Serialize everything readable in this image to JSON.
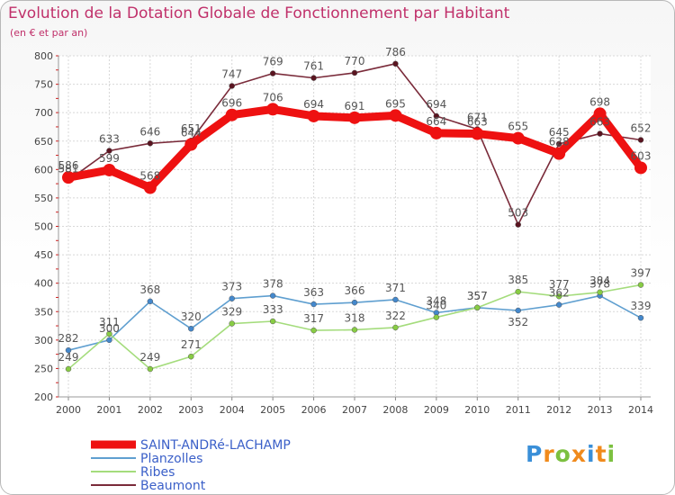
{
  "title": "Evolution de la Dotation Globale de Fonctionnement par Habitant",
  "subtitle": "(en € et par an)",
  "logo_text": "Proxiti",
  "chart_data": {
    "type": "line",
    "title": "Evolution de la Dotation Globale de Fonctionnement par Habitant",
    "ylabel": "(en € et par an)",
    "xlabel": "",
    "ylim": [
      200,
      800
    ],
    "yticks": [
      200,
      250,
      300,
      350,
      400,
      450,
      500,
      550,
      600,
      650,
      700,
      750,
      800
    ],
    "grid": true,
    "legend_position": "bottom-left",
    "x": [
      "2000",
      "2001",
      "2002",
      "2003",
      "2004",
      "2005",
      "2006",
      "2007",
      "2008",
      "2009",
      "2010",
      "2011",
      "2012",
      "2013",
      "2014"
    ],
    "series": [
      {
        "name": "SAINT-ANDRé-LACHAMP",
        "color": "#ee1111",
        "marker": "#ee1111",
        "values": [
          586,
          599,
          568,
          644,
          696,
          706,
          694,
          691,
          695,
          664,
          663,
          655,
          628,
          698,
          603
        ]
      },
      {
        "name": "Planzolles",
        "color": "#5f9fd0",
        "marker": "#4488cc",
        "values": [
          282,
          300,
          368,
          320,
          373,
          378,
          363,
          366,
          371,
          348,
          357,
          352,
          362,
          378,
          339
        ]
      },
      {
        "name": "Ribes",
        "color": "#a4dc7c",
        "marker": "#88cc44",
        "values": [
          249,
          311,
          249,
          271,
          329,
          333,
          317,
          318,
          322,
          340,
          357,
          385,
          377,
          384,
          397
        ]
      },
      {
        "name": "Beaumont",
        "color": "#7a2b3a",
        "marker": "#5a1420",
        "values": [
          581,
          633,
          646,
          651,
          747,
          769,
          761,
          770,
          786,
          694,
          671,
          503,
          645,
          663,
          652
        ]
      }
    ],
    "data_labels": [
      {
        "label": "586",
        "series": 0,
        "idx": 0,
        "above": true
      },
      {
        "label": "599",
        "series": 0,
        "idx": 1,
        "above": true
      },
      {
        "label": "568",
        "series": 0,
        "idx": 2,
        "above": true
      },
      {
        "label": "644",
        "series": 0,
        "idx": 3,
        "above": true
      },
      {
        "label": "696",
        "series": 0,
        "idx": 4,
        "above": true
      },
      {
        "label": "706",
        "series": 0,
        "idx": 5,
        "above": true
      },
      {
        "label": "694",
        "series": 0,
        "idx": 6,
        "above": true
      },
      {
        "label": "691",
        "series": 0,
        "idx": 7,
        "above": true
      },
      {
        "label": "695",
        "series": 0,
        "idx": 8,
        "above": true
      },
      {
        "label": "664",
        "series": 0,
        "idx": 9,
        "above": true
      },
      {
        "label": "663",
        "series": 0,
        "idx": 10,
        "above": true
      },
      {
        "label": "655",
        "series": 0,
        "idx": 11,
        "above": true
      },
      {
        "label": "628",
        "series": 0,
        "idx": 12,
        "above": true
      },
      {
        "label": "698",
        "series": 0,
        "idx": 13,
        "above": true
      },
      {
        "label": "603",
        "series": 0,
        "idx": 14,
        "above": true
      },
      {
        "label": "282",
        "series": 1,
        "idx": 0,
        "above": true
      },
      {
        "label": "300",
        "series": 1,
        "idx": 1,
        "above": true
      },
      {
        "label": "368",
        "series": 1,
        "idx": 2,
        "above": true
      },
      {
        "label": "320",
        "series": 1,
        "idx": 3,
        "above": true
      },
      {
        "label": "373",
        "series": 1,
        "idx": 4,
        "above": true
      },
      {
        "label": "378",
        "series": 1,
        "idx": 5,
        "above": true
      },
      {
        "label": "363",
        "series": 1,
        "idx": 6,
        "above": true
      },
      {
        "label": "366",
        "series": 1,
        "idx": 7,
        "above": true
      },
      {
        "label": "371",
        "series": 1,
        "idx": 8,
        "above": true
      },
      {
        "label": "348",
        "series": 1,
        "idx": 9,
        "above": true
      },
      {
        "label": "357",
        "series": 1,
        "idx": 10,
        "above": true
      },
      {
        "label": "352",
        "series": 1,
        "idx": 11,
        "above": false
      },
      {
        "label": "362",
        "series": 1,
        "idx": 12,
        "above": true
      },
      {
        "label": "378",
        "series": 1,
        "idx": 13,
        "above": true
      },
      {
        "label": "339",
        "series": 1,
        "idx": 14,
        "above": true
      },
      {
        "label": "249",
        "series": 2,
        "idx": 0,
        "above": true
      },
      {
        "label": "311",
        "series": 2,
        "idx": 1,
        "above": true
      },
      {
        "label": "249",
        "series": 2,
        "idx": 2,
        "above": true
      },
      {
        "label": "271",
        "series": 2,
        "idx": 3,
        "above": true
      },
      {
        "label": "329",
        "series": 2,
        "idx": 4,
        "above": true
      },
      {
        "label": "333",
        "series": 2,
        "idx": 5,
        "above": true
      },
      {
        "label": "317",
        "series": 2,
        "idx": 6,
        "above": true
      },
      {
        "label": "318",
        "series": 2,
        "idx": 7,
        "above": true
      },
      {
        "label": "322",
        "series": 2,
        "idx": 8,
        "above": true
      },
      {
        "label": "340",
        "series": 2,
        "idx": 9,
        "above": true
      },
      {
        "label": "357",
        "series": 2,
        "idx": 10,
        "above": true
      },
      {
        "label": "385",
        "series": 2,
        "idx": 11,
        "above": true
      },
      {
        "label": "377",
        "series": 2,
        "idx": 12,
        "above": true
      },
      {
        "label": "384",
        "series": 2,
        "idx": 13,
        "above": true
      },
      {
        "label": "397",
        "series": 2,
        "idx": 14,
        "above": true
      },
      {
        "label": "581",
        "series": 3,
        "idx": 0,
        "above": true
      },
      {
        "label": "633",
        "series": 3,
        "idx": 1,
        "above": true
      },
      {
        "label": "646",
        "series": 3,
        "idx": 2,
        "above": true
      },
      {
        "label": "651",
        "series": 3,
        "idx": 3,
        "above": true
      },
      {
        "label": "747",
        "series": 3,
        "idx": 4,
        "above": true
      },
      {
        "label": "769",
        "series": 3,
        "idx": 5,
        "above": true
      },
      {
        "label": "761",
        "series": 3,
        "idx": 6,
        "above": true
      },
      {
        "label": "770",
        "series": 3,
        "idx": 7,
        "above": true
      },
      {
        "label": "786",
        "series": 3,
        "idx": 8,
        "above": true
      },
      {
        "label": "694",
        "series": 3,
        "idx": 9,
        "above": true
      },
      {
        "label": "671",
        "series": 3,
        "idx": 10,
        "above": true
      },
      {
        "label": "503",
        "series": 3,
        "idx": 11,
        "above": true
      },
      {
        "label": "645",
        "series": 3,
        "idx": 12,
        "above": true
      },
      {
        "label": "663",
        "series": 3,
        "idx": 13,
        "above": true
      },
      {
        "label": "652",
        "series": 3,
        "idx": 14,
        "above": true
      }
    ]
  }
}
